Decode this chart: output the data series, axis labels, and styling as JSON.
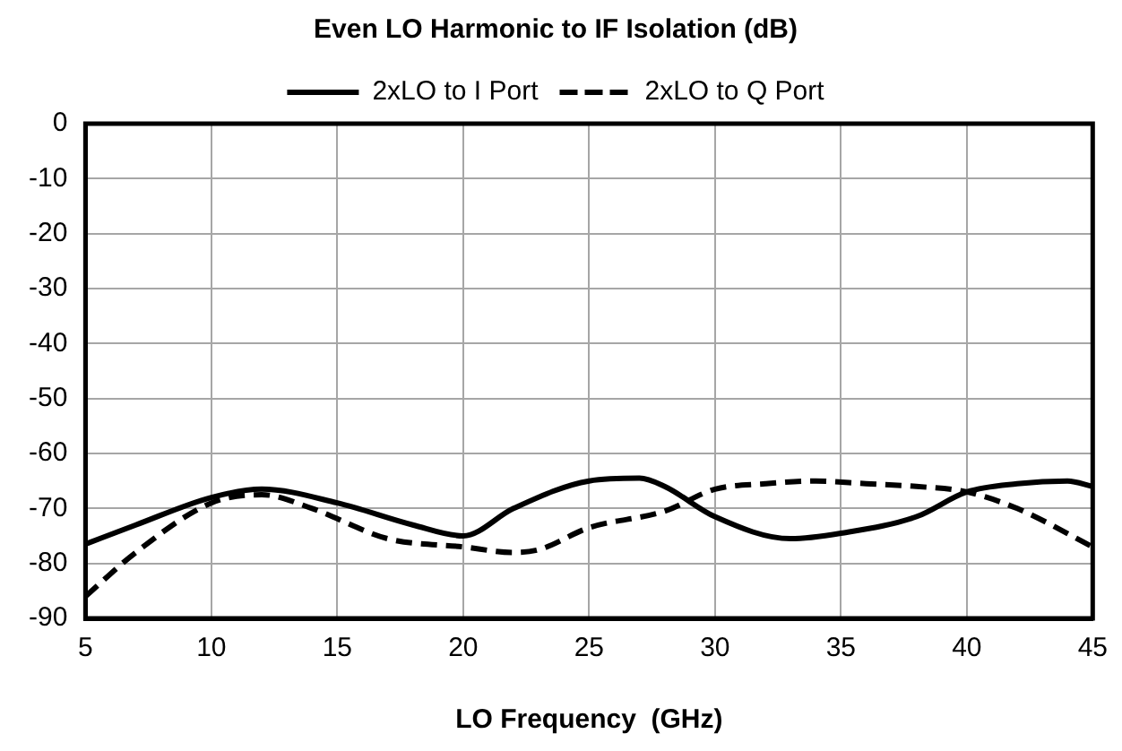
{
  "chart_data": {
    "type": "line",
    "title": "Even LO Harmonic to IF Isolation (dB)",
    "xlabel": "LO Frequency  (GHz)",
    "xlim": [
      5,
      45
    ],
    "xticks": [
      5,
      10,
      15,
      20,
      25,
      30,
      35,
      40,
      45
    ],
    "ylim": [
      -90,
      0
    ],
    "yticks": [
      -90,
      -80,
      -70,
      -60,
      -50,
      -40,
      -30,
      -20,
      -10,
      0
    ],
    "grid": true,
    "legend": "top",
    "marker": "none",
    "series": [
      {
        "name": "2xLO to I Port",
        "color": "#000000",
        "line_style": "solid",
        "x": [
          5,
          7,
          10,
          12,
          15,
          18,
          20,
          22,
          25,
          27,
          28,
          30,
          33,
          35,
          38,
          40,
          42,
          44,
          45
        ],
        "values": [
          -76.5,
          -73,
          -68,
          -66.5,
          -69,
          -73,
          -75,
          -70,
          -65,
          -64.5,
          -66,
          -71.5,
          -75.5,
          -74.5,
          -71.5,
          -67,
          -65.5,
          -65,
          -66
        ]
      },
      {
        "name": "2xLO to Q Port",
        "color": "#000000",
        "line_style": "dashed",
        "x": [
          5,
          7,
          10,
          12,
          14,
          17,
          20,
          22,
          23,
          25,
          28,
          30,
          32,
          34,
          36,
          38,
          40,
          42,
          45
        ],
        "values": [
          -86,
          -78,
          -69,
          -67.5,
          -70,
          -75.5,
          -77,
          -78,
          -77.5,
          -73.5,
          -70.5,
          -66.5,
          -65.5,
          -65,
          -65.5,
          -66,
          -67,
          -70,
          -77
        ]
      }
    ]
  }
}
